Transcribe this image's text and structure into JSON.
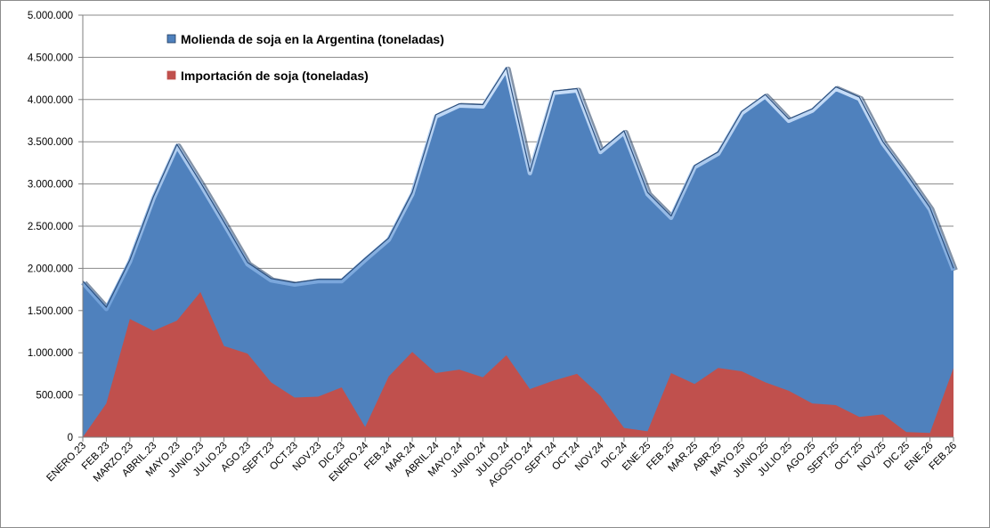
{
  "chart_data": {
    "type": "area",
    "title": "",
    "xlabel": "",
    "ylabel": "",
    "ylim": [
      0,
      5000000
    ],
    "y_ticks": [
      0,
      500000,
      1000000,
      1500000,
      2000000,
      2500000,
      3000000,
      3500000,
      4000000,
      4500000,
      5000000
    ],
    "y_tick_labels": [
      "0",
      "500.000",
      "1.000.000",
      "1.500.000",
      "2.000.000",
      "2.500.000",
      "3.000.000",
      "3.500.000",
      "4.000.000",
      "4.500.000",
      "5.000.000"
    ],
    "grid": true,
    "legend_position": "top-left",
    "categories": [
      "ENERO.23",
      "FEB.23",
      "MARZO.23",
      "ABRIL.23",
      "MAYO.23",
      "JUNIO.23",
      "JULIO.23",
      "AGO.23",
      "SEPT.23",
      "OCT.23",
      "NOV.23",
      "DIC.23",
      "ENERO.24",
      "FEB.24",
      "MAR.24",
      "ABRIL.24",
      "MAYO.24",
      "JUNIO.24",
      "JULIO.24",
      "AGOSTO.24",
      "SEPT.24",
      "OCT.24",
      "NOV.24",
      "DIC.24",
      "ENE.25",
      "FEB.25",
      "MAR.25",
      "ABR.25",
      "MAYO.25",
      "JUNIO.25",
      "JULIO.25",
      "AGO.25",
      "SEPT.25",
      "OCT.25",
      "NOV.25",
      "DIC.25",
      "ENE.26",
      "FEB.26"
    ],
    "series": [
      {
        "name": "Molienda de soja en la Argentina (toneladas)",
        "color": "#4f81bd",
        "values": [
          1850000,
          1540000,
          2100000,
          2850000,
          3470000,
          3020000,
          2550000,
          2070000,
          1880000,
          1830000,
          1870000,
          1870000,
          2120000,
          2360000,
          2900000,
          3820000,
          3950000,
          3940000,
          4380000,
          3150000,
          4100000,
          4130000,
          3400000,
          3630000,
          2900000,
          2620000,
          3220000,
          3380000,
          3860000,
          4060000,
          3770000,
          3890000,
          4150000,
          4030000,
          3500000,
          3120000,
          2720000,
          2000000
        ]
      },
      {
        "name": "Importación de soja (toneladas)",
        "color": "#c0504d",
        "values": [
          0,
          400000,
          1400000,
          1260000,
          1380000,
          1720000,
          1080000,
          990000,
          650000,
          470000,
          480000,
          590000,
          120000,
          720000,
          1010000,
          760000,
          800000,
          710000,
          970000,
          570000,
          670000,
          750000,
          490000,
          110000,
          70000,
          760000,
          630000,
          820000,
          780000,
          650000,
          550000,
          400000,
          380000,
          240000,
          270000,
          60000,
          50000,
          820000
        ]
      }
    ]
  }
}
